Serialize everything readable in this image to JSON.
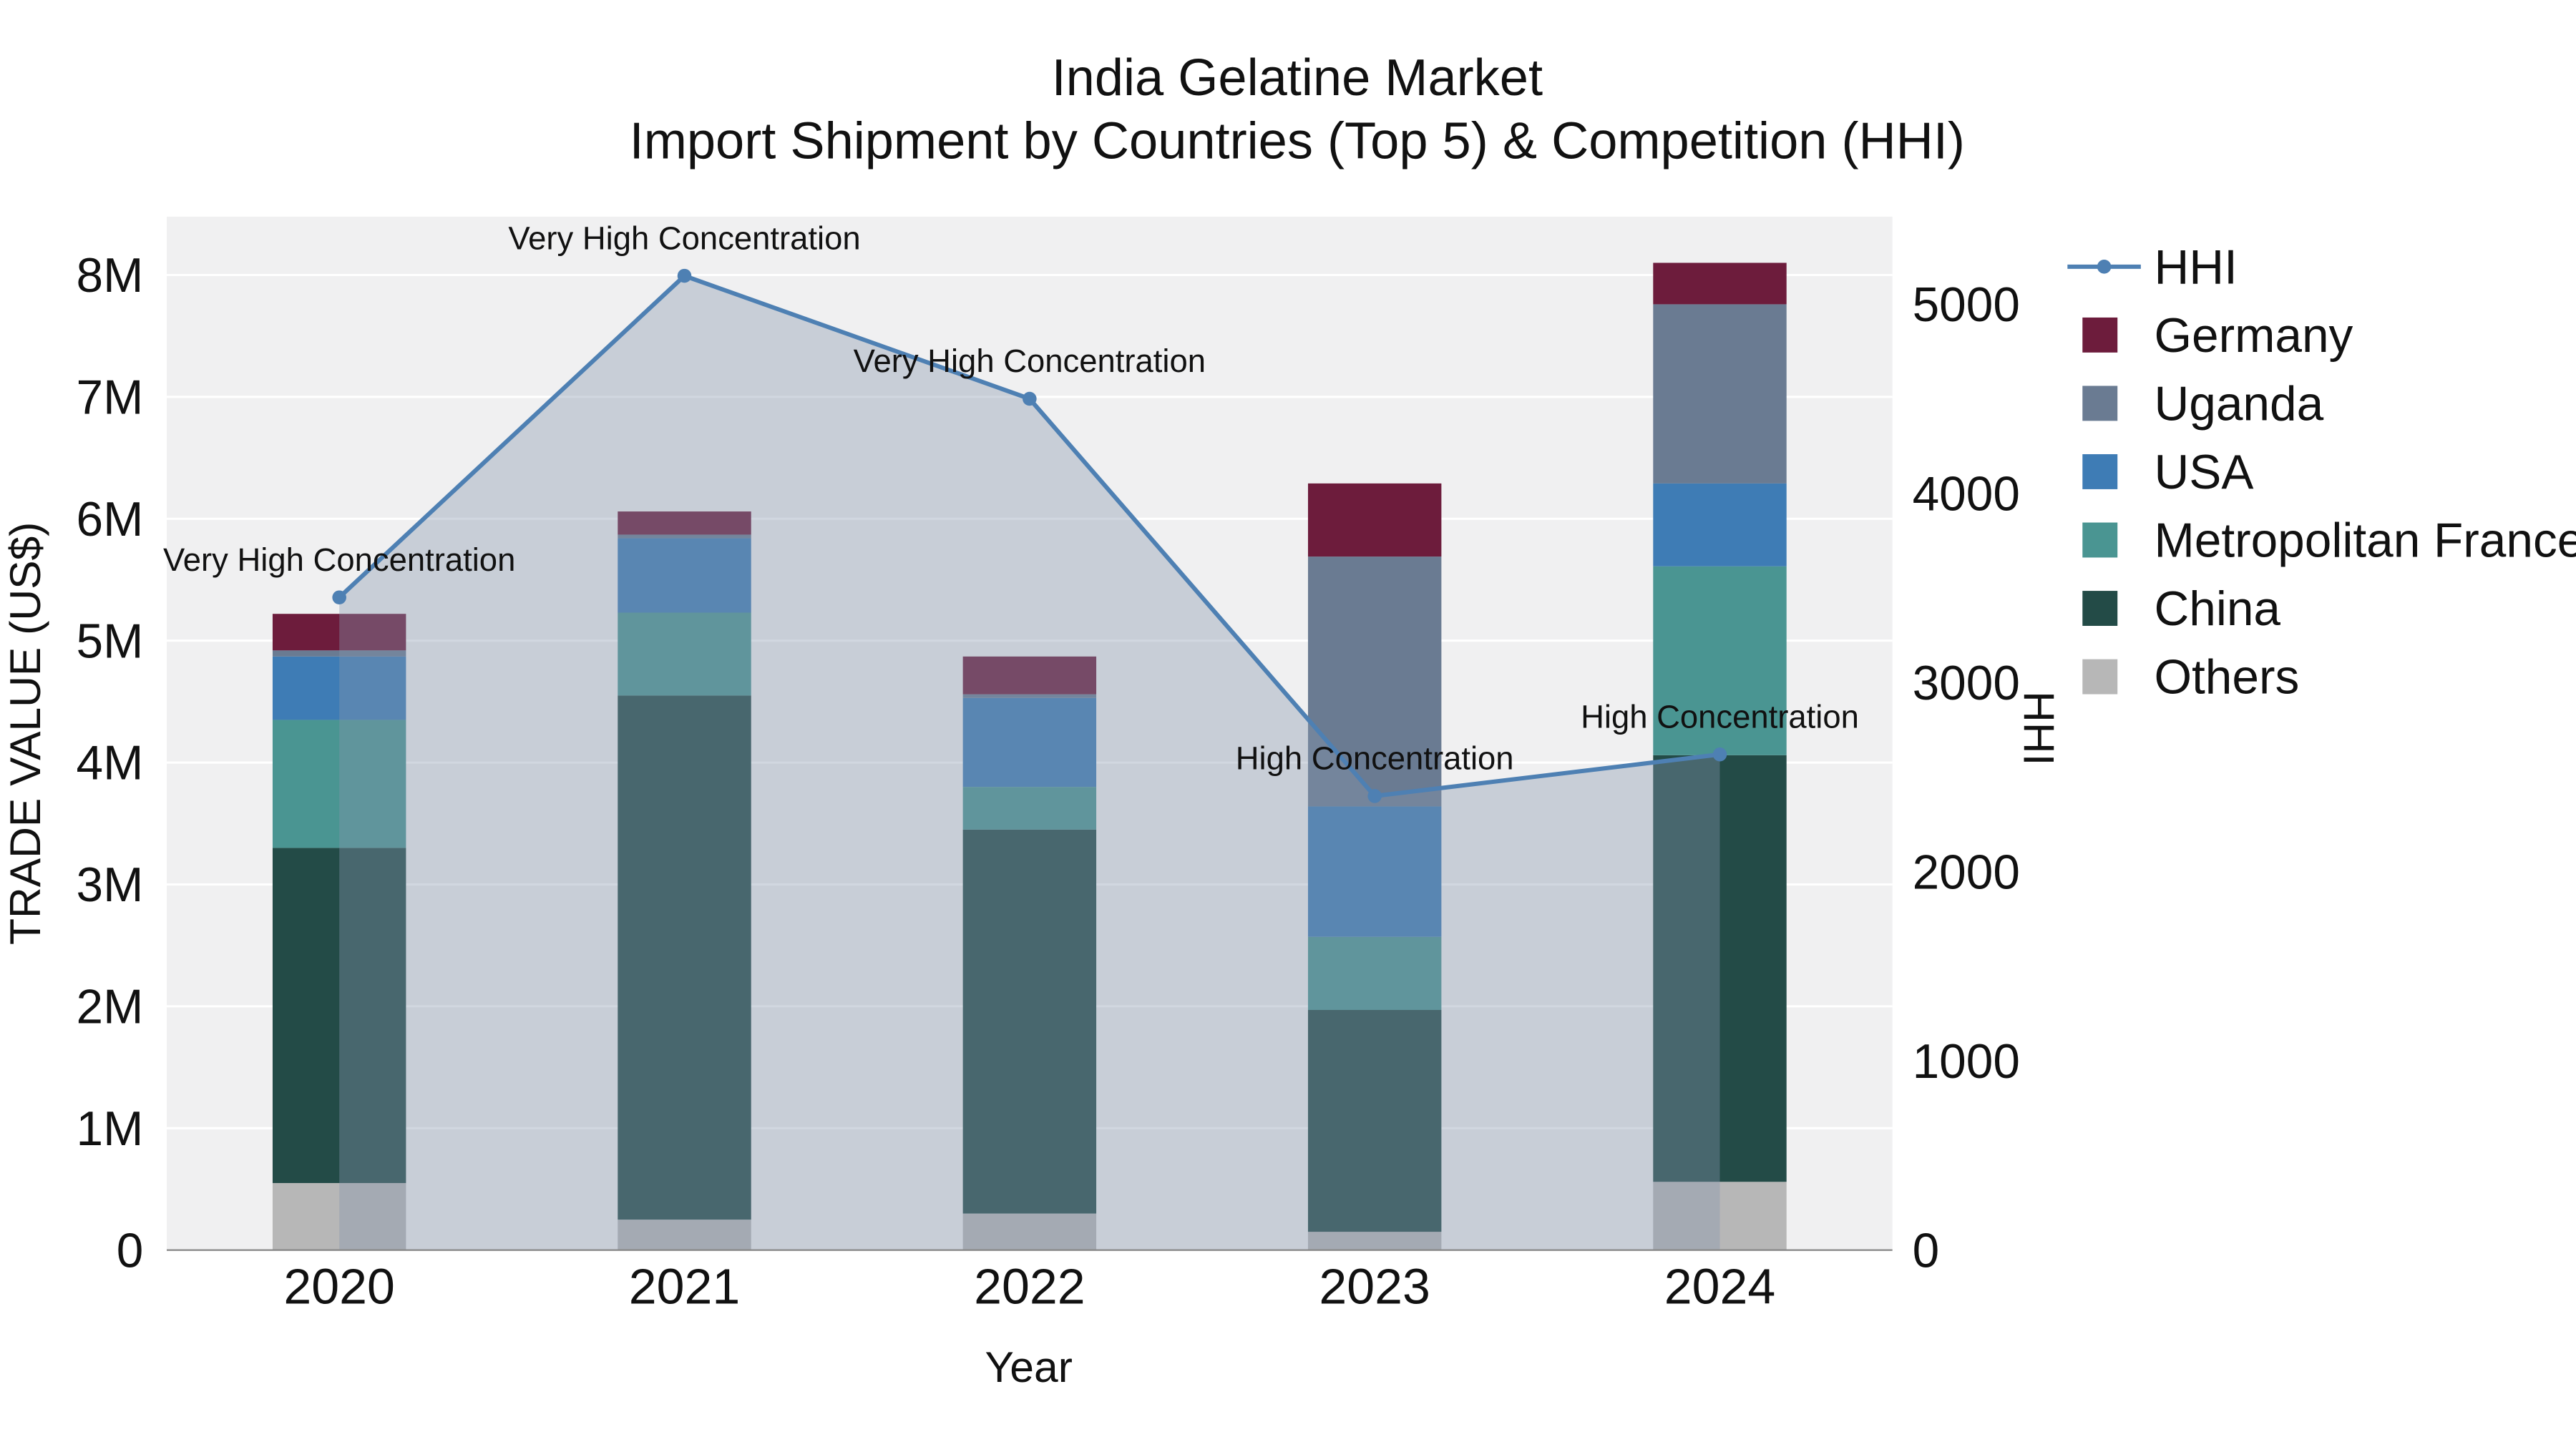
{
  "title": {
    "line1": "India Gelatine Market",
    "line2": "Import Shipment by Countries (Top 5) & Competition (HHI)"
  },
  "axes": {
    "y_left_label": "TRADE VALUE (US$)",
    "y_right_label": "HHI",
    "x_label": "Year"
  },
  "chart_data": {
    "type": "bar+line",
    "categories": [
      "2020",
      "2021",
      "2022",
      "2023",
      "2024"
    ],
    "bar_series": [
      {
        "name": "Others",
        "color": "#b7b7b7",
        "values": [
          550000,
          250000,
          300000,
          150000,
          560000
        ]
      },
      {
        "name": "China",
        "color": "#234b47",
        "values": [
          2750000,
          4300000,
          3150000,
          1820000,
          3500000
        ]
      },
      {
        "name": "Metropolitan France",
        "color": "#4a9592",
        "values": [
          1050000,
          680000,
          350000,
          600000,
          1550000
        ]
      },
      {
        "name": "USA",
        "color": "#3e7cb5",
        "values": [
          520000,
          610000,
          730000,
          1070000,
          680000
        ]
      },
      {
        "name": "Uganda",
        "color": "#6a7b92",
        "values": [
          50000,
          30000,
          30000,
          2050000,
          1470000
        ]
      },
      {
        "name": "Germany",
        "color": "#6d1c3c",
        "values": [
          300000,
          190000,
          310000,
          600000,
          340000
        ]
      }
    ],
    "line_series": {
      "name": "HHI",
      "color": "#4e80b3",
      "area_fill": "rgba(135,150,174,0.38)",
      "values": [
        3450,
        5150,
        4500,
        2400,
        2620
      ]
    },
    "annotations": [
      {
        "x": "2020",
        "text": "Very High Concentration"
      },
      {
        "x": "2021",
        "text": "Very High Concentration"
      },
      {
        "x": "2022",
        "text": "Very High Concentration"
      },
      {
        "x": "2023",
        "text": "High Concentration"
      },
      {
        "x": "2024",
        "text": "High Concentration"
      }
    ],
    "y_left": {
      "ticks": [
        "0",
        "1M",
        "2M",
        "3M",
        "4M",
        "5M",
        "6M",
        "7M",
        "8M"
      ],
      "max": 8000000
    },
    "y_right": {
      "ticks": [
        "0",
        "1000",
        "2000",
        "3000",
        "4000",
        "5000"
      ],
      "max": 5000
    }
  },
  "legend": {
    "items": [
      {
        "label": "HHI",
        "type": "line",
        "color": "#4e80b3"
      },
      {
        "label": "Germany",
        "type": "square",
        "color": "#6d1c3c"
      },
      {
        "label": "Uganda",
        "type": "square",
        "color": "#6a7b92"
      },
      {
        "label": "USA",
        "type": "square",
        "color": "#3e7cb5"
      },
      {
        "label": "Metropolitan France",
        "type": "square",
        "color": "#4a9592"
      },
      {
        "label": "China",
        "type": "square",
        "color": "#234b47"
      },
      {
        "label": "Others",
        "type": "square",
        "color": "#b7b7b7"
      }
    ]
  }
}
